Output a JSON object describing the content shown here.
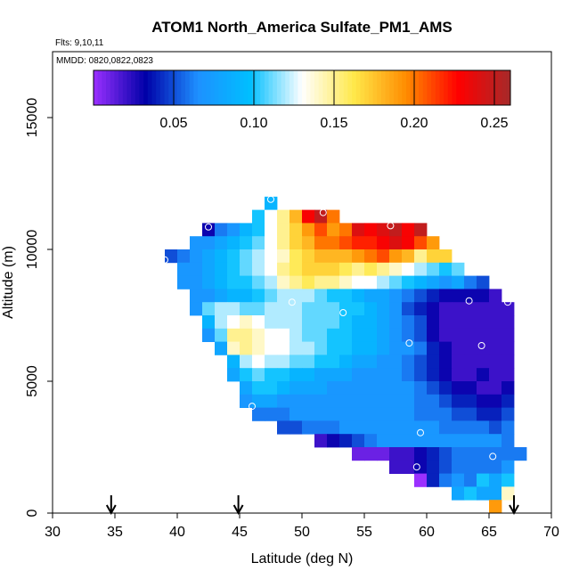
{
  "chart_data": {
    "type": "heatmap",
    "title": "ATOM1 North_America Sulfate_PM1_AMS",
    "annotations": [
      "Flts: 9,10,11",
      "MMDD: 0820,0822,0823"
    ],
    "xlabel": "Latitude (deg N)",
    "ylabel": "Altitude (m)",
    "xlim": [
      30,
      70
    ],
    "ylim": [
      0,
      17500
    ],
    "x_ticks": [
      "30",
      "35",
      "40",
      "45",
      "50",
      "55",
      "60",
      "65",
      "70"
    ],
    "y_ticks": [
      "0",
      "5000",
      "10000",
      "15000"
    ],
    "grid": false,
    "colorbar": {
      "range": [
        0,
        0.26
      ],
      "ticks": [
        "0.05",
        "0.10",
        "0.15",
        "0.20",
        "0.25"
      ],
      "colors": [
        "#9b30ff",
        "#0000a8",
        "#1e90ff",
        "#00bfff",
        "#ffffff",
        "#ffe84a",
        "#ff8c00",
        "#ff0000",
        "#a52a2a"
      ],
      "placement": "top, inside plot"
    },
    "cell_size": {
      "lat": 1,
      "alt": 500
    },
    "rows": [
      {
        "alt": 11750,
        "lat_start": 47,
        "values": [
          0.09
        ]
      },
      {
        "alt": 11250,
        "lat_start": 46,
        "values": [
          0.1,
          0.13,
          0.15,
          0.18,
          0.23,
          0.25,
          0.2
        ]
      },
      {
        "alt": 10750,
        "lat_start": 42,
        "values": [
          0.03,
          0.06,
          0.07,
          0.09,
          0.1,
          0.13,
          0.15,
          0.17,
          0.19,
          0.21,
          0.19,
          0.2,
          0.24,
          0.23,
          0.24,
          0.25,
          0.23,
          0.25
        ]
      },
      {
        "alt": 10250,
        "lat_start": 41,
        "values": [
          0.07,
          0.07,
          0.08,
          0.09,
          0.1,
          0.11,
          0.13,
          0.15,
          0.17,
          0.18,
          0.2,
          0.2,
          0.21,
          0.22,
          0.22,
          0.23,
          0.24,
          0.23,
          0.21,
          0.19
        ]
      },
      {
        "alt": 9750,
        "lat_start": 39,
        "values": [
          0.05,
          0.06,
          0.07,
          0.08,
          0.09,
          0.1,
          0.11,
          0.12,
          0.13,
          0.14,
          0.16,
          0.17,
          0.18,
          0.18,
          0.18,
          0.19,
          0.2,
          0.21,
          0.19,
          0.18,
          0.15,
          0.17,
          0.17
        ]
      },
      {
        "alt": 9250,
        "lat_start": 40,
        "values": [
          0.07,
          0.07,
          0.08,
          0.09,
          0.1,
          0.11,
          0.12,
          0.13,
          0.15,
          0.16,
          0.17,
          0.17,
          0.17,
          0.16,
          0.15,
          0.16,
          0.15,
          0.14,
          0.13,
          0.12,
          0.11,
          0.1,
          0.11
        ]
      },
      {
        "alt": 8750,
        "lat_start": 40,
        "values": [
          0.07,
          0.07,
          0.08,
          0.09,
          0.1,
          0.1,
          0.11,
          0.12,
          0.14,
          0.15,
          0.16,
          0.15,
          0.15,
          0.14,
          0.13,
          0.13,
          0.12,
          0.11,
          0.1,
          0.09,
          0.08,
          0.07,
          0.08,
          0.06,
          0.05
        ]
      },
      {
        "alt": 8250,
        "lat_start": 41,
        "values": [
          0.07,
          0.07,
          0.08,
          0.09,
          0.09,
          0.1,
          0.11,
          0.12,
          0.12,
          0.12,
          0.11,
          0.1,
          0.1,
          0.09,
          0.08,
          0.08,
          0.07,
          0.06,
          0.05,
          0.04,
          0.03,
          0.03,
          0.03,
          0.03,
          0.02
        ]
      },
      {
        "alt": 7750,
        "lat_start": 41,
        "values": [
          0.07,
          0.11,
          0.12,
          0.12,
          0.11,
          0.11,
          0.12,
          0.12,
          0.12,
          0.11,
          0.11,
          0.11,
          0.1,
          0.1,
          0.09,
          0.08,
          0.07,
          0.05,
          0.04,
          0.03,
          0.02,
          0.02,
          0.02,
          0.02,
          0.02,
          0.02
        ]
      },
      {
        "alt": 7250,
        "lat_start": 42,
        "values": [
          0.09,
          0.12,
          0.13,
          0.14,
          0.13,
          0.12,
          0.12,
          0.12,
          0.11,
          0.11,
          0.11,
          0.1,
          0.09,
          0.09,
          0.08,
          0.07,
          0.06,
          0.05,
          0.03,
          0.02,
          0.02,
          0.02,
          0.02,
          0.02,
          0.02
        ]
      },
      {
        "alt": 6750,
        "lat_start": 42,
        "values": [
          0.07,
          0.11,
          0.15,
          0.15,
          0.14,
          0.13,
          0.13,
          0.12,
          0.11,
          0.11,
          0.1,
          0.1,
          0.09,
          0.09,
          0.08,
          0.07,
          0.06,
          0.05,
          0.03,
          0.02,
          0.02,
          0.02,
          0.02,
          0.02,
          0.02
        ]
      },
      {
        "alt": 6250,
        "lat_start": 43,
        "values": [
          0.08,
          0.14,
          0.15,
          0.14,
          0.13,
          0.13,
          0.12,
          0.12,
          0.11,
          0.1,
          0.1,
          0.09,
          0.09,
          0.08,
          0.07,
          0.07,
          0.06,
          0.04,
          0.03,
          0.02,
          0.02,
          0.02,
          0.02,
          0.02
        ]
      },
      {
        "alt": 5750,
        "lat_start": 44,
        "values": [
          0.09,
          0.12,
          0.13,
          0.12,
          0.12,
          0.11,
          0.11,
          0.1,
          0.1,
          0.09,
          0.08,
          0.08,
          0.07,
          0.07,
          0.06,
          0.05,
          0.04,
          0.03,
          0.02,
          0.02,
          0.02,
          0.02,
          0.02
        ]
      },
      {
        "alt": 5250,
        "lat_start": 44,
        "values": [
          0.08,
          0.1,
          0.11,
          0.1,
          0.1,
          0.09,
          0.09,
          0.08,
          0.08,
          0.08,
          0.07,
          0.07,
          0.07,
          0.07,
          0.06,
          0.05,
          0.04,
          0.03,
          0.02,
          0.02,
          0.03,
          0.02,
          0.02
        ]
      },
      {
        "alt": 4750,
        "lat_start": 45,
        "values": [
          0.08,
          0.1,
          0.1,
          0.09,
          0.08,
          0.08,
          0.08,
          0.07,
          0.07,
          0.07,
          0.07,
          0.07,
          0.07,
          0.07,
          0.06,
          0.05,
          0.04,
          0.03,
          0.03,
          0.02,
          0.02,
          0.03
        ]
      },
      {
        "alt": 4250,
        "lat_start": 45,
        "values": [
          0.07,
          0.08,
          0.08,
          0.07,
          0.07,
          0.07,
          0.07,
          0.07,
          0.07,
          0.07,
          0.07,
          0.07,
          0.07,
          0.07,
          0.06,
          0.06,
          0.05,
          0.04,
          0.04,
          0.03,
          0.03,
          0.04
        ]
      },
      {
        "alt": 3750,
        "lat_start": 46,
        "values": [
          0.06,
          0.06,
          0.06,
          0.07,
          0.07,
          0.07,
          0.07,
          0.07,
          0.07,
          0.07,
          0.07,
          0.07,
          0.07,
          0.06,
          0.06,
          0.06,
          0.05,
          0.05,
          0.04,
          0.04,
          0.05
        ]
      },
      {
        "alt": 3250,
        "lat_start": 48,
        "values": [
          0.05,
          0.05,
          0.06,
          0.06,
          0.06,
          0.07,
          0.07,
          0.07,
          0.07,
          0.07,
          0.07,
          0.07,
          0.07,
          0.06,
          0.06,
          0.06,
          0.06,
          0.05,
          0.06
        ]
      },
      {
        "alt": 2750,
        "lat_start": 51,
        "values": [
          0.02,
          0.03,
          0.04,
          0.05,
          0.06,
          0.07,
          0.07,
          0.07,
          0.07,
          0.07,
          0.07,
          0.07,
          0.07,
          0.07,
          0.07,
          0.06
        ]
      },
      {
        "alt": 2250,
        "lat_start": 54,
        "values": [
          0.01,
          0.01,
          0.01,
          0.02,
          0.02,
          0.03,
          0.04,
          0.05,
          0.06,
          0.06,
          0.06,
          0.06,
          0.06,
          0.06
        ]
      },
      {
        "alt": 1750,
        "lat_start": 57,
        "values": [
          0.02,
          0.02,
          0.03,
          0.04,
          0.05,
          0.06,
          0.06,
          0.06,
          0.06,
          0.07
        ]
      },
      {
        "alt": 1250,
        "lat_start": 59,
        "values": [
          0.0,
          0.04,
          0.06,
          0.07,
          0.06,
          0.1,
          0.08,
          0.1
        ]
      },
      {
        "alt": 750,
        "lat_start": 62,
        "values": [
          0.08,
          0.1,
          0.08,
          0.08,
          0.14
        ]
      },
      {
        "alt": 250,
        "lat_start": 65,
        "values": [
          0.19
        ]
      }
    ],
    "circles": [
      {
        "lat": 47.5,
        "alt": 11900
      },
      {
        "lat": 51.7,
        "alt": 11400
      },
      {
        "lat": 42.5,
        "alt": 10850
      },
      {
        "lat": 57.1,
        "alt": 10900
      },
      {
        "lat": 39,
        "alt": 9600
      },
      {
        "lat": 49.2,
        "alt": 8000
      },
      {
        "lat": 53.3,
        "alt": 7600
      },
      {
        "lat": 63.4,
        "alt": 8050
      },
      {
        "lat": 66.5,
        "alt": 8000
      },
      {
        "lat": 58.6,
        "alt": 6450
      },
      {
        "lat": 64.4,
        "alt": 6350
      },
      {
        "lat": 46,
        "alt": 4050
      },
      {
        "lat": 59.5,
        "alt": 3050
      },
      {
        "lat": 65.3,
        "alt": 2150
      },
      {
        "lat": 59.2,
        "alt": 1750
      }
    ],
    "arrows_lat": [
      34.7,
      44.9,
      67
    ]
  }
}
